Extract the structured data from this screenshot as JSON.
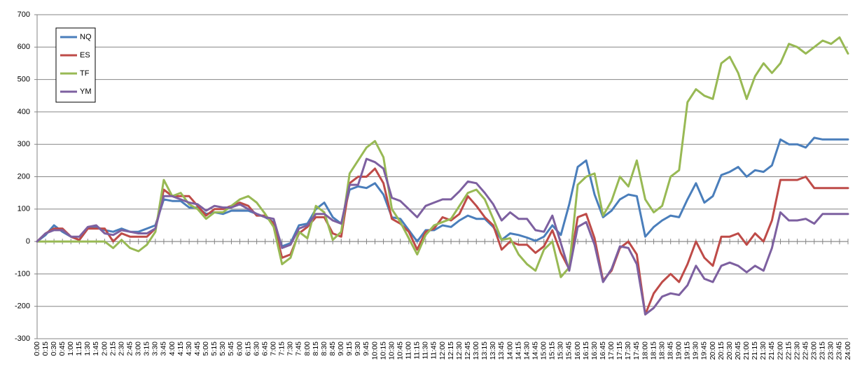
{
  "chart_data": {
    "type": "line",
    "categories": [
      "0:00",
      "0:15",
      "0:30",
      "0:45",
      "1:00",
      "1:15",
      "1:30",
      "1:45",
      "2:00",
      "2:15",
      "2:30",
      "2:45",
      "3:00",
      "3:15",
      "3:30",
      "3:45",
      "4:00",
      "4:15",
      "4:30",
      "4:45",
      "5:00",
      "5:15",
      "5:30",
      "5:45",
      "6:00",
      "6:15",
      "6:30",
      "6:45",
      "7:00",
      "7:15",
      "7:30",
      "7:45",
      "8:00",
      "8:15",
      "8:30",
      "8:45",
      "9:00",
      "9:15",
      "9:30",
      "9:45",
      "10:00",
      "10:15",
      "10:30",
      "10:45",
      "11:00",
      "11:15",
      "11:30",
      "11:45",
      "12:00",
      "12:15",
      "12:30",
      "12:45",
      "13:00",
      "13:15",
      "13:30",
      "13:45",
      "14:00",
      "14:15",
      "14:30",
      "14:45",
      "15:00",
      "15:15",
      "15:30",
      "15:45",
      "16:00",
      "16:15",
      "16:30",
      "16:45",
      "17:00",
      "17:15",
      "17:30",
      "17:45",
      "18:00",
      "18:15",
      "18:30",
      "18:45",
      "19:00",
      "19:15",
      "19:30",
      "19:45",
      "20:00",
      "20:15",
      "20:30",
      "20:45",
      "21:00",
      "21:15",
      "21:30",
      "21:45",
      "22:00",
      "22:15",
      "22:30",
      "22:45",
      "23:00",
      "23:15",
      "23:30",
      "23:45",
      "24:00"
    ],
    "series": [
      {
        "name": "NQ",
        "color": "#4a7ebb",
        "values": [
          0,
          20,
          50,
          30,
          15,
          5,
          40,
          45,
          35,
          30,
          40,
          30,
          30,
          40,
          50,
          130,
          125,
          125,
          105,
          105,
          85,
          90,
          85,
          95,
          95,
          95,
          85,
          75,
          60,
          -15,
          -5,
          50,
          55,
          100,
          120,
          75,
          55,
          160,
          170,
          165,
          180,
          145,
          75,
          70,
          35,
          0,
          35,
          35,
          50,
          45,
          65,
          80,
          70,
          70,
          45,
          5,
          25,
          20,
          12,
          2,
          15,
          50,
          20,
          115,
          230,
          250,
          145,
          75,
          95,
          130,
          145,
          140,
          15,
          45,
          65,
          80,
          75,
          130,
          180,
          120,
          140,
          205,
          215,
          230,
          200,
          220,
          215,
          235,
          315,
          300,
          300,
          290,
          320,
          315,
          315,
          315,
          315
        ]
      },
      {
        "name": "ES",
        "color": "#be4b48",
        "values": [
          0,
          25,
          40,
          40,
          15,
          5,
          40,
          40,
          40,
          0,
          25,
          15,
          15,
          15,
          40,
          160,
          140,
          140,
          140,
          110,
          80,
          100,
          100,
          110,
          120,
          110,
          80,
          80,
          55,
          -50,
          -40,
          25,
          45,
          75,
          75,
          25,
          15,
          180,
          200,
          200,
          225,
          180,
          70,
          55,
          30,
          -25,
          30,
          40,
          75,
          65,
          85,
          140,
          110,
          75,
          50,
          -25,
          0,
          -10,
          -10,
          -35,
          -15,
          35,
          -35,
          -85,
          75,
          85,
          10,
          -120,
          -90,
          -20,
          0,
          -40,
          -225,
          -160,
          -125,
          -100,
          -125,
          -70,
          0,
          -50,
          -75,
          15,
          15,
          25,
          -10,
          25,
          0,
          65,
          190,
          190,
          190,
          200,
          165,
          165,
          165,
          165,
          165
        ]
      },
      {
        "name": "TF",
        "color": "#98b954",
        "values": [
          0,
          0,
          0,
          0,
          0,
          0,
          0,
          0,
          0,
          -20,
          5,
          -20,
          -30,
          -10,
          30,
          190,
          140,
          150,
          115,
          100,
          70,
          90,
          90,
          110,
          130,
          140,
          120,
          85,
          45,
          -70,
          -50,
          30,
          10,
          110,
          90,
          5,
          30,
          210,
          250,
          290,
          310,
          260,
          100,
          60,
          10,
          -40,
          20,
          50,
          60,
          70,
          110,
          150,
          160,
          130,
          70,
          5,
          10,
          -40,
          -70,
          -90,
          -25,
          0,
          -110,
          -80,
          175,
          200,
          210,
          80,
          125,
          200,
          170,
          250,
          130,
          90,
          110,
          200,
          220,
          430,
          470,
          450,
          440,
          550,
          570,
          520,
          440,
          510,
          550,
          520,
          550,
          610,
          600,
          580,
          600,
          620,
          610,
          630,
          580
        ]
      },
      {
        "name": "YM",
        "color": "#7d60a0",
        "values": [
          0,
          25,
          35,
          35,
          15,
          15,
          45,
          50,
          25,
          20,
          35,
          30,
          25,
          25,
          40,
          140,
          140,
          130,
          120,
          115,
          95,
          110,
          105,
          105,
          115,
          100,
          85,
          75,
          70,
          -20,
          -10,
          40,
          50,
          85,
          85,
          65,
          55,
          175,
          175,
          255,
          245,
          225,
          135,
          125,
          100,
          75,
          110,
          120,
          130,
          130,
          155,
          185,
          180,
          150,
          115,
          65,
          90,
          70,
          70,
          35,
          30,
          80,
          -5,
          -90,
          45,
          60,
          -10,
          -125,
          -85,
          -15,
          -20,
          -70,
          -225,
          -205,
          -170,
          -160,
          -165,
          -135,
          -75,
          -115,
          -125,
          -75,
          -65,
          -75,
          -95,
          -75,
          -90,
          -20,
          90,
          65,
          65,
          70,
          55,
          85,
          85,
          85,
          85
        ]
      }
    ],
    "ylim": [
      -300,
      700
    ],
    "yticks": [
      -300,
      -200,
      -100,
      0,
      100,
      200,
      300,
      400,
      500,
      600,
      700
    ],
    "grid": true,
    "legend": "upper left"
  }
}
